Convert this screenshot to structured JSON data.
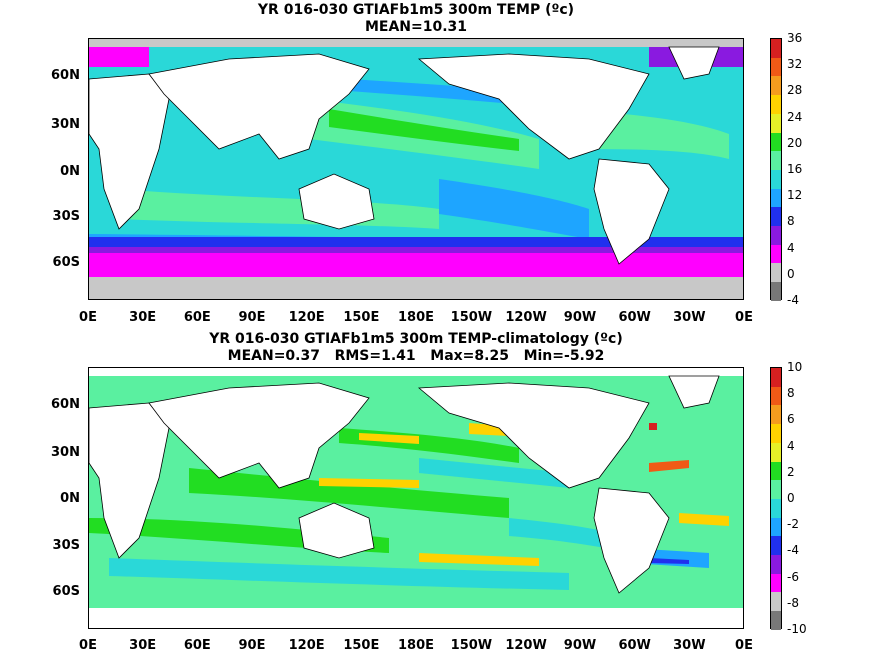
{
  "panel_top": {
    "title_line1": "YR 016-030 GTIAFb1m5 300m TEMP (ºc)",
    "title_line2": "MEAN=10.31",
    "colorbar_labels": [
      "36",
      "32",
      "28",
      "24",
      "20",
      "16",
      "12",
      "8",
      "4",
      "0",
      "-4"
    ],
    "colors": [
      "#d62020",
      "#f05a16",
      "#f59c1e",
      "#ffd200",
      "#e6f028",
      "#22dd22",
      "#5af0a0",
      "#2ad8d8",
      "#1ea5ff",
      "#2030ee",
      "#8a1ae0",
      "#ff00ff",
      "#c8c8c8",
      "#787878"
    ]
  },
  "panel_bottom": {
    "title_line1": "YR 016-030 GTIAFb1m5 300m TEMP-climatology (ºc)",
    "title_line2": "MEAN=0.37   RMS=1.41   Max=8.25   Min=-5.92",
    "colorbar_labels": [
      "10",
      "8",
      "6",
      "4",
      "2",
      "0",
      "-2",
      "-4",
      "-6",
      "-8",
      "-10"
    ],
    "colors": [
      "#d62020",
      "#f05a16",
      "#f59c1e",
      "#ffd200",
      "#e6f028",
      "#22dd22",
      "#5af0a0",
      "#2ad8d8",
      "#1ea5ff",
      "#2030ee",
      "#8a1ae0",
      "#ff00ff",
      "#c8c8c8",
      "#787878"
    ]
  },
  "lat_labels": [
    "60N",
    "30N",
    "0N",
    "30S",
    "60S"
  ],
  "lon_labels": [
    "0E",
    "30E",
    "60E",
    "90E",
    "120E",
    "150E",
    "180E",
    "150W",
    "120W",
    "90W",
    "60W",
    "30W",
    "0E"
  ]
}
